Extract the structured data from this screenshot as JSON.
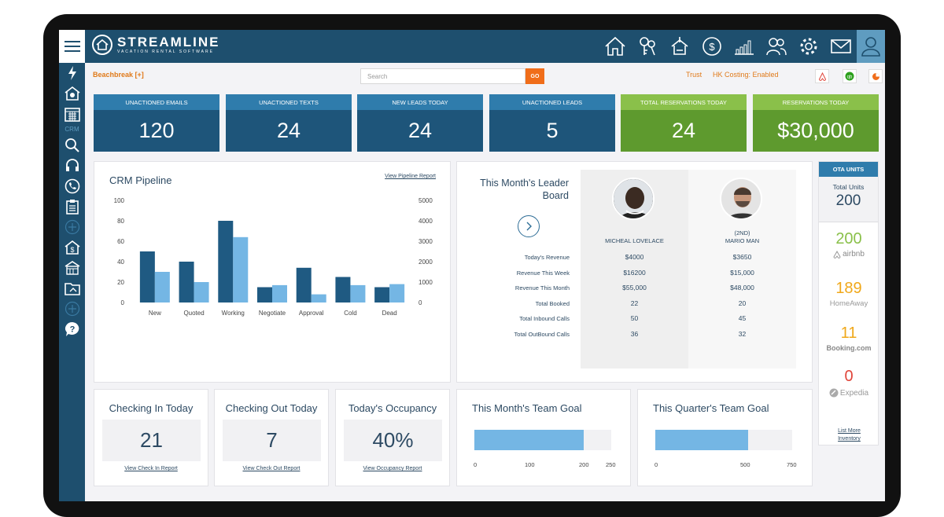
{
  "app": {
    "name": "STREAMLINE",
    "tagline": "VACATION RENTAL SOFTWARE"
  },
  "topnav": [
    "home-icon",
    "keys-icon",
    "housekeeping-icon",
    "dollar-icon",
    "reports-icon",
    "owners-icon",
    "settings-icon",
    "mail-icon",
    "user-icon"
  ],
  "sidebar": {
    "crm_label": "CRM"
  },
  "subheader": {
    "property": "Beachbreak [+]",
    "search_placeholder": "Search",
    "go_label": "GO",
    "trust": "Trust",
    "hk_costing": "HK Costing: Enabled"
  },
  "stats": [
    {
      "label": "UNACTIONED EMAILS",
      "value": "120"
    },
    {
      "label": "UNACTIONED TEXTS",
      "value": "24"
    },
    {
      "label": "NEW LEADS TODAY",
      "value": "24"
    },
    {
      "label": "UNACTIONED LEADS",
      "value": "5"
    },
    {
      "label": "TOTAL RESERVATIONS TODAY",
      "value": "24"
    },
    {
      "label": "RESERVATIONS TODAY",
      "value": "$30,000"
    }
  ],
  "colors": {
    "blue_dark": "#1e557a",
    "blue_light": "#2f7cac",
    "green_dark": "#5e9a2e",
    "green_light": "#8ac04a",
    "bar_dark": "#1f5a82",
    "bar_light": "#74b6e4",
    "accent_orange": "#f06d1a"
  },
  "pipeline": {
    "title": "CRM Pipeline",
    "link": "View Pipeline Report"
  },
  "chart_data": {
    "type": "bar",
    "categories": [
      "New",
      "Quoted",
      "Working",
      "Negotiate",
      "Approval",
      "Cold",
      "Dead"
    ],
    "series": [
      {
        "values": [
          50,
          40,
          80,
          15,
          34,
          25,
          15
        ],
        "axis": "left"
      },
      {
        "values": [
          1500,
          1000,
          3200,
          850,
          400,
          850,
          900
        ],
        "axis": "right"
      }
    ],
    "ylim_left": [
      0,
      100
    ],
    "ylim_right": [
      0,
      5000
    ],
    "yticks_left": [
      "100",
      "80",
      "60",
      "40",
      "20",
      "0"
    ],
    "yticks_right": [
      "5000",
      "4000",
      "3000",
      "2000",
      "1000",
      "0"
    ],
    "grid": false
  },
  "leaderboard": {
    "title_line1": "This Month's Leader",
    "title_line2": "Board",
    "row_labels": [
      "Today's Revenue",
      "Revenue This Week",
      "Revenue This Month",
      "Total Booked",
      "Total Inbound Calls",
      "Total OutBound Calls"
    ],
    "people": [
      {
        "rank": "",
        "name": "MICHEAL LOVELACE",
        "values": [
          "$4000",
          "$16200",
          "$55,000",
          "22",
          "50",
          "36"
        ]
      },
      {
        "rank": "(2ND)",
        "name": "MARIO MAN",
        "values": [
          "$3650",
          "$15,000",
          "$48,000",
          "20",
          "45",
          "32"
        ]
      }
    ]
  },
  "ota": {
    "header": "OTA UNITS",
    "total_label": "Total Units",
    "total_value": "200",
    "channels": [
      {
        "value": "200",
        "name": "airbnb",
        "color": "#8ac04a"
      },
      {
        "value": "189",
        "name": "HomeAway",
        "color": "#f0a81a"
      },
      {
        "value": "11",
        "name": "Booking.com",
        "color": "#f0a81a"
      },
      {
        "value": "0",
        "name": "Expedia",
        "color": "#e0453a"
      }
    ],
    "list_more_1": "List More",
    "list_more_2": "Inventory"
  },
  "today_cards": [
    {
      "title": "Checking In Today",
      "value": "21",
      "link": "View Check In Report"
    },
    {
      "title": "Checking Out Today",
      "value": "7",
      "link": "View Check Out Report"
    },
    {
      "title": "Today's Occupancy",
      "value": "40%",
      "link": "View Occupancy Report"
    }
  ],
  "goals": [
    {
      "title": "This Month's Team Goal",
      "ticks": [
        "0",
        "100",
        "200",
        "250"
      ],
      "progress": 0.8
    },
    {
      "title": "This Quarter's Team Goal",
      "ticks": [
        "0",
        "500",
        "750"
      ],
      "progress": 0.68
    }
  ]
}
